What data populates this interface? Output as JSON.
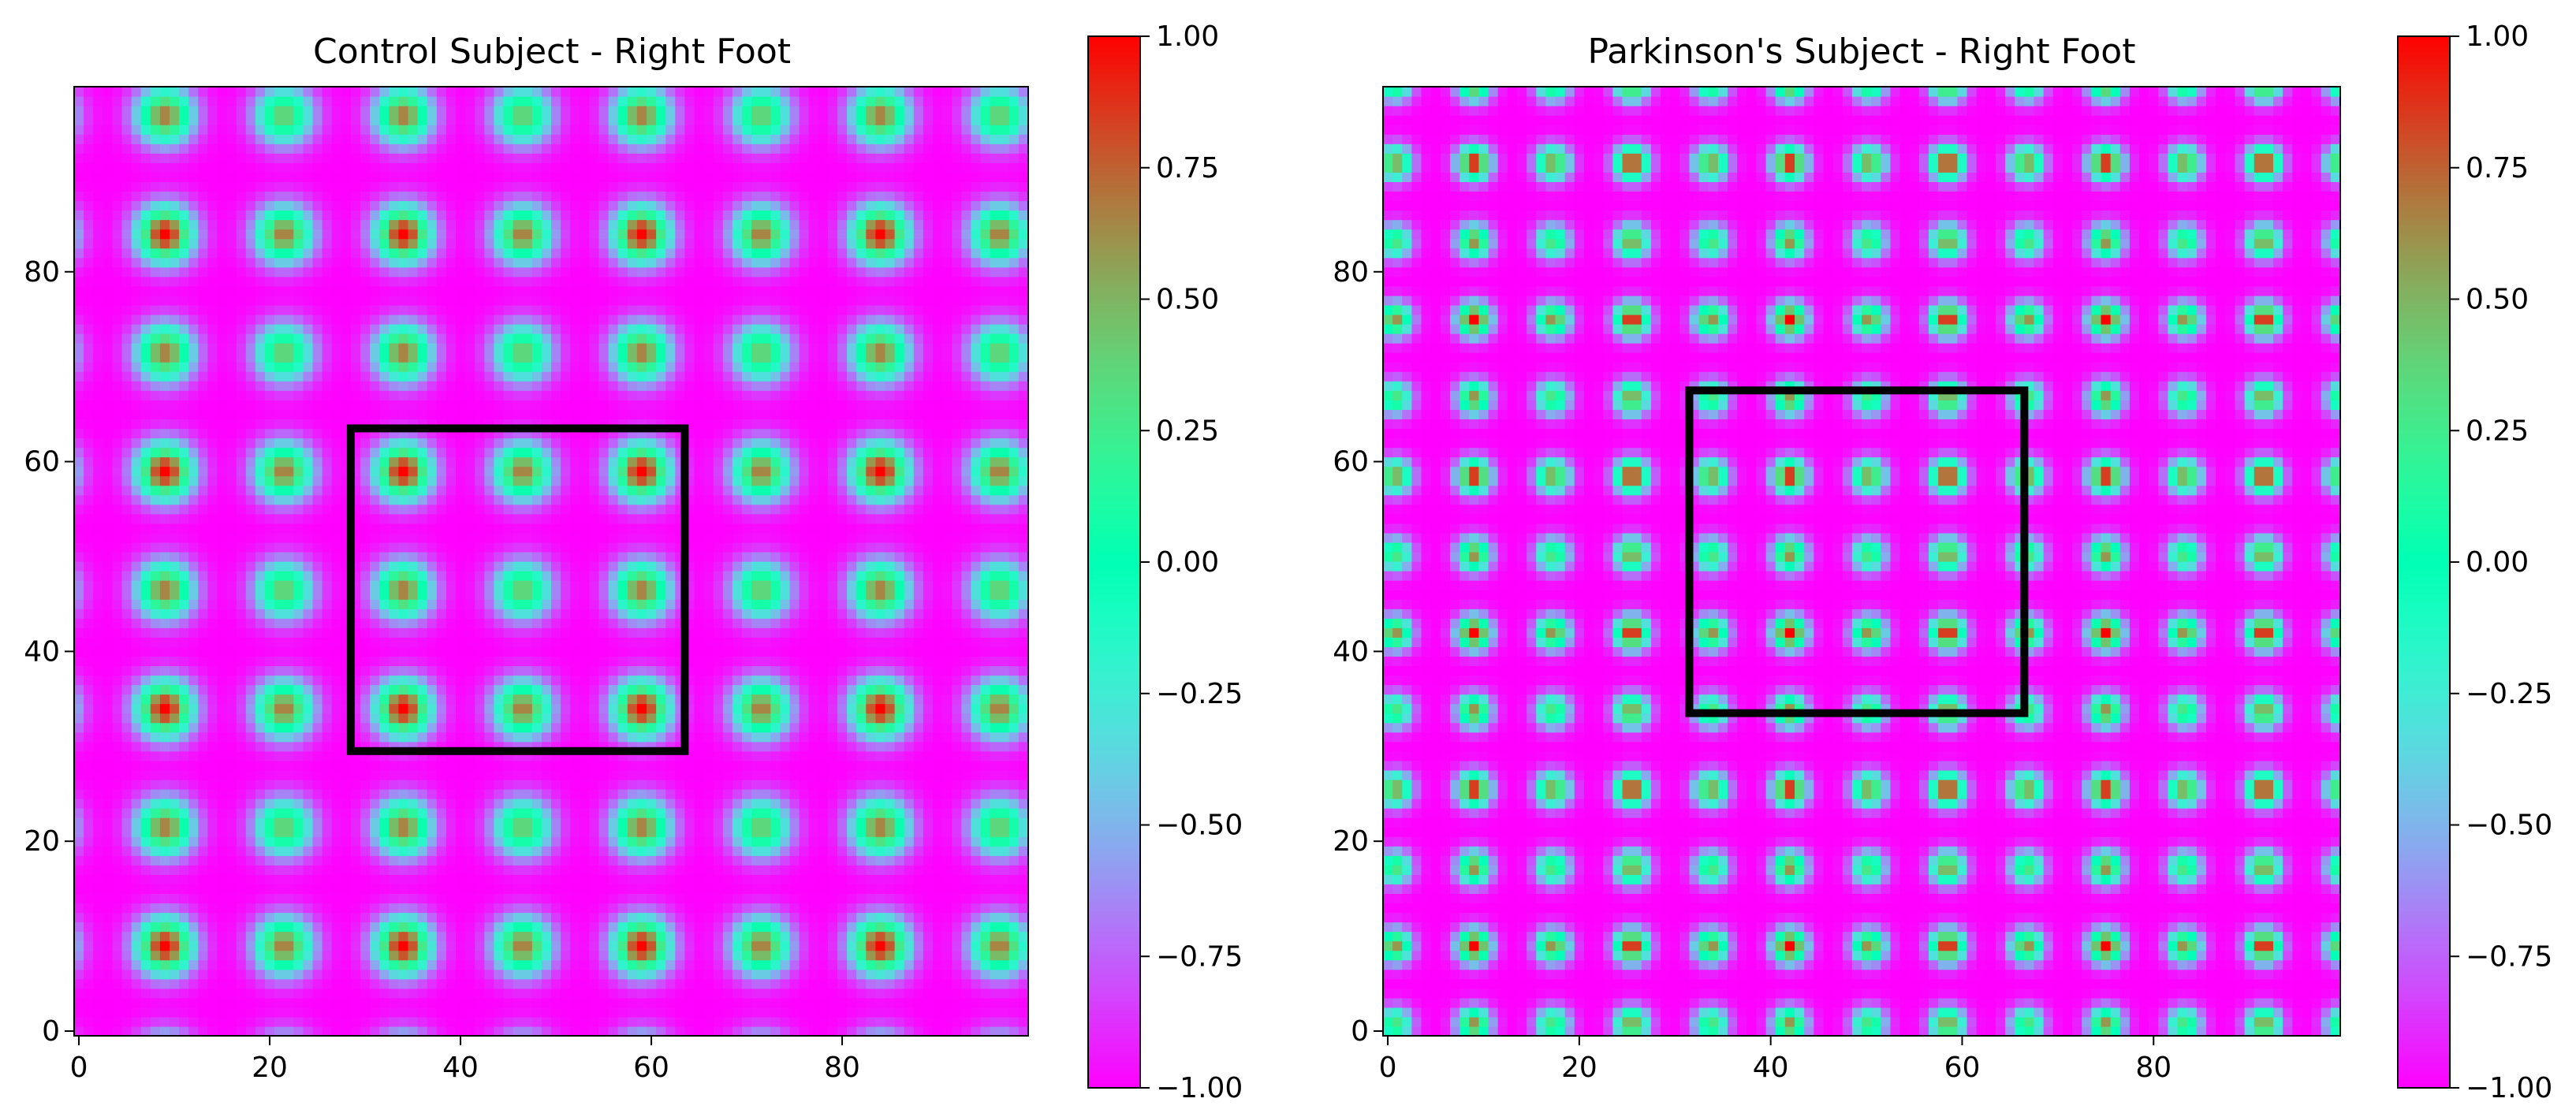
{
  "chart_data": [
    {
      "type": "heatmap",
      "title": "Control Subject - Right Foot",
      "xlabel": "",
      "ylabel": "",
      "xlim": [
        0,
        100
      ],
      "ylim": [
        0,
        100
      ],
      "grid_size": 100,
      "x_ticks": [
        0,
        20,
        40,
        60,
        80
      ],
      "y_ticks": [
        0,
        20,
        40,
        60,
        80
      ],
      "pattern": {
        "period": 12.5,
        "phase": 9,
        "strong_spacing": 2,
        "sharpness": 2.0
      },
      "highlight_box": {
        "x0": 29,
        "x1": 64,
        "y0": 30,
        "y1": 64
      },
      "colorbar": {
        "vmin": -1.0,
        "vmax": 1.0,
        "ticks": [
          "1.00",
          "0.75",
          "0.50",
          "0.25",
          "0.00",
          "−0.25",
          "−0.50",
          "−0.75",
          "−1.00"
        ],
        "colormap": "rainbow"
      }
    },
    {
      "type": "heatmap",
      "title": "Parkinson's Subject - Right Foot",
      "xlabel": "",
      "ylabel": "",
      "xlim": [
        0,
        100
      ],
      "ylim": [
        0,
        100
      ],
      "grid_size": 100,
      "x_ticks": [
        0,
        20,
        40,
        60,
        80
      ],
      "y_ticks": [
        0,
        20,
        40,
        60,
        80
      ],
      "pattern": {
        "period": 8.25,
        "phase": 9,
        "strong_spacing": 2,
        "sharpness": 1.6
      },
      "highlight_box": {
        "x0": 32,
        "x1": 67,
        "y0": 34,
        "y1": 68
      },
      "colorbar": {
        "vmin": -1.0,
        "vmax": 1.0,
        "ticks": [
          "1.00",
          "0.75",
          "0.50",
          "0.25",
          "0.00",
          "−0.25",
          "−0.50",
          "−0.75",
          "−1.00"
        ],
        "colormap": "rainbow"
      }
    }
  ]
}
